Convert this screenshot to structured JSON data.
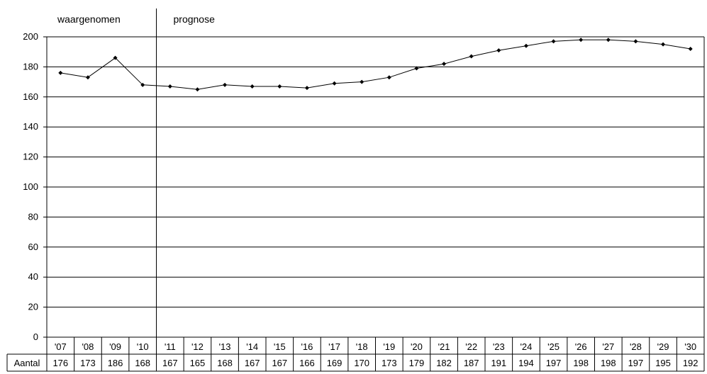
{
  "chart_data": {
    "type": "line",
    "section_labels": {
      "observed": "waargenomen",
      "forecast": "prognose"
    },
    "categories": [
      "'07",
      "'08",
      "'09",
      "'10",
      "'11",
      "'12",
      "'13",
      "'14",
      "'15",
      "'16",
      "'17",
      "'18",
      "'19",
      "'20",
      "'21",
      "'22",
      "'23",
      "'24",
      "'25",
      "'26",
      "'27",
      "'28",
      "'29",
      "'30"
    ],
    "series": [
      {
        "name": "Aantal",
        "values": [
          176,
          173,
          186,
          168,
          167,
          165,
          168,
          167,
          167,
          166,
          169,
          170,
          173,
          179,
          182,
          187,
          191,
          194,
          197,
          198,
          198,
          197,
          195,
          192
        ]
      }
    ],
    "ylim": [
      0,
      200
    ],
    "yticks": [
      0,
      20,
      40,
      60,
      80,
      100,
      120,
      140,
      160,
      180,
      200
    ],
    "grid": true,
    "forecast_starts_at": "'11",
    "colors": {
      "line": "#000000",
      "grid": "#000000",
      "background": "#ffffff"
    }
  }
}
